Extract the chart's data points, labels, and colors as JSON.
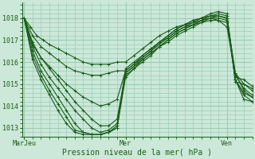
{
  "bg_color": "#cce8d8",
  "grid_color": "#99ccb8",
  "line_color": "#1a5c1a",
  "marker_color": "#1a5c1a",
  "xlabel_text": "Pression niveau de la mer( hPa )",
  "xtick_labels": [
    "MarJeu",
    "Mer",
    "Ven"
  ],
  "xtick_positions": [
    0,
    48,
    96
  ],
  "ytick_labels": [
    "1013",
    "1014",
    "1015",
    "1016",
    "1017",
    "1018"
  ],
  "ytick_values": [
    1013,
    1014,
    1015,
    1016,
    1017,
    1018
  ],
  "ymin": 1012.6,
  "ymax": 1018.7,
  "xmin": -1,
  "xmax": 108,
  "series": [
    [
      0,
      1018.0,
      3,
      1017.6,
      6,
      1017.2,
      9,
      1017.0,
      12,
      1016.8,
      16,
      1016.6,
      20,
      1016.4,
      24,
      1016.2,
      28,
      1016.0,
      32,
      1015.9,
      36,
      1015.9,
      40,
      1015.9,
      44,
      1016.0,
      48,
      1016.0,
      52,
      1016.3,
      56,
      1016.6,
      60,
      1016.9,
      64,
      1017.2,
      68,
      1017.4,
      72,
      1017.6,
      76,
      1017.7,
      80,
      1017.8,
      84,
      1017.9,
      88,
      1018.0,
      92,
      1017.9,
      96,
      1017.6,
      100,
      1015.5,
      104,
      1015.0,
      108,
      1014.8
    ],
    [
      0,
      1018.0,
      4,
      1017.2,
      8,
      1016.7,
      12,
      1016.4,
      16,
      1016.1,
      20,
      1015.8,
      24,
      1015.6,
      28,
      1015.5,
      32,
      1015.4,
      36,
      1015.4,
      40,
      1015.5,
      44,
      1015.6,
      48,
      1015.6,
      52,
      1015.9,
      56,
      1016.2,
      60,
      1016.5,
      64,
      1016.9,
      68,
      1017.1,
      72,
      1017.4,
      76,
      1017.6,
      80,
      1017.7,
      84,
      1017.8,
      88,
      1017.9,
      92,
      1017.9,
      96,
      1017.8,
      100,
      1015.2,
      104,
      1014.5,
      108,
      1014.2
    ],
    [
      0,
      1018.0,
      4,
      1016.9,
      8,
      1016.2,
      12,
      1015.8,
      16,
      1015.4,
      20,
      1015.0,
      24,
      1014.7,
      28,
      1014.4,
      32,
      1014.2,
      36,
      1014.0,
      40,
      1014.1,
      44,
      1014.3,
      48,
      1015.6,
      52,
      1015.9,
      56,
      1016.3,
      60,
      1016.6,
      64,
      1016.9,
      68,
      1017.2,
      72,
      1017.5,
      76,
      1017.7,
      80,
      1017.9,
      84,
      1018.0,
      88,
      1018.1,
      92,
      1018.1,
      96,
      1018.0,
      100,
      1015.2,
      104,
      1014.3,
      108,
      1014.2
    ],
    [
      0,
      1018.0,
      4,
      1016.7,
      8,
      1015.9,
      12,
      1015.3,
      16,
      1014.8,
      20,
      1014.3,
      24,
      1013.8,
      28,
      1013.4,
      32,
      1013.0,
      36,
      1012.8,
      40,
      1012.9,
      44,
      1013.2,
      48,
      1015.5,
      52,
      1015.8,
      56,
      1016.2,
      60,
      1016.5,
      64,
      1016.8,
      68,
      1017.1,
      72,
      1017.4,
      76,
      1017.6,
      80,
      1017.8,
      84,
      1018.0,
      88,
      1018.1,
      92,
      1018.1,
      96,
      1018.0,
      100,
      1015.5,
      104,
      1014.7,
      108,
      1014.4
    ],
    [
      0,
      1018.0,
      4,
      1016.5,
      8,
      1015.6,
      12,
      1015.0,
      16,
      1014.4,
      20,
      1013.8,
      24,
      1013.2,
      28,
      1012.8,
      32,
      1012.7,
      36,
      1012.7,
      40,
      1012.8,
      44,
      1013.1,
      48,
      1015.4,
      52,
      1015.7,
      56,
      1016.1,
      60,
      1016.4,
      64,
      1016.7,
      68,
      1017.0,
      72,
      1017.3,
      76,
      1017.5,
      80,
      1017.7,
      84,
      1017.9,
      88,
      1018.1,
      92,
      1018.2,
      96,
      1018.1,
      100,
      1015.4,
      104,
      1014.8,
      108,
      1014.5
    ],
    [
      0,
      1018.0,
      4,
      1016.3,
      8,
      1015.4,
      12,
      1014.7,
      16,
      1014.1,
      20,
      1013.5,
      24,
      1012.9,
      28,
      1012.8,
      32,
      1012.7,
      36,
      1012.7,
      40,
      1012.8,
      44,
      1013.0,
      48,
      1015.3,
      52,
      1015.7,
      56,
      1016.0,
      60,
      1016.3,
      64,
      1016.7,
      68,
      1016.9,
      72,
      1017.2,
      76,
      1017.4,
      80,
      1017.6,
      84,
      1017.8,
      88,
      1018.0,
      92,
      1018.1,
      96,
      1018.0,
      100,
      1015.2,
      104,
      1014.6,
      108,
      1014.4
    ],
    [
      0,
      1018.0,
      4,
      1016.1,
      8,
      1015.2,
      12,
      1014.5,
      16,
      1013.8,
      20,
      1013.2,
      24,
      1012.8,
      28,
      1012.7,
      32,
      1012.7,
      36,
      1012.7,
      40,
      1012.8,
      44,
      1013.0,
      48,
      1015.7,
      52,
      1016.0,
      56,
      1016.3,
      60,
      1016.6,
      64,
      1016.9,
      68,
      1017.2,
      72,
      1017.5,
      76,
      1017.7,
      80,
      1017.9,
      84,
      1018.0,
      88,
      1018.2,
      92,
      1018.3,
      96,
      1018.2,
      100,
      1015.1,
      104,
      1015.0,
      108,
      1014.7
    ],
    [
      0,
      1018.0,
      4,
      1016.8,
      8,
      1016.2,
      12,
      1015.7,
      16,
      1015.2,
      20,
      1014.7,
      24,
      1014.2,
      28,
      1013.8,
      32,
      1013.4,
      36,
      1013.1,
      40,
      1013.1,
      44,
      1013.4,
      48,
      1015.5,
      52,
      1015.8,
      56,
      1016.1,
      60,
      1016.4,
      64,
      1016.7,
      68,
      1017.0,
      72,
      1017.3,
      76,
      1017.5,
      80,
      1017.7,
      84,
      1017.9,
      88,
      1018.0,
      92,
      1018.0,
      96,
      1017.9,
      100,
      1015.3,
      104,
      1015.2,
      108,
      1014.9
    ]
  ]
}
